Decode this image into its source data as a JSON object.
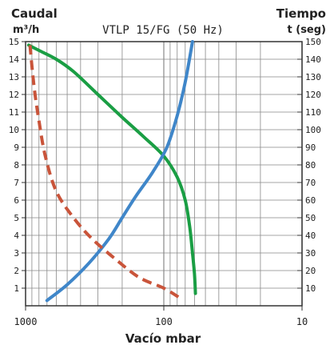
{
  "chart_data": {
    "type": "line",
    "title": "VTLP 15/FG (50 Hz)",
    "left_axis_title_top": "Caudal",
    "left_axis_title_unit": "m³/h",
    "right_axis_title_top": "Tiempo",
    "right_axis_title_unit": "t (seg)",
    "xlabel": "Vacío mbar",
    "x_scale": "log",
    "x_reversed": true,
    "xlim": [
      1000,
      10
    ],
    "x_tick_labels": [
      "1000",
      "100",
      "10"
    ],
    "x_tick_values": [
      1000,
      100,
      10
    ],
    "ylim_left": [
      0,
      15
    ],
    "y_left_ticks": [
      "1",
      "2",
      "3",
      "4",
      "5",
      "6",
      "7",
      "8",
      "9",
      "10",
      "11",
      "12",
      "13",
      "14",
      "15"
    ],
    "ylim_right": [
      0,
      150
    ],
    "y_right_ticks": [
      "10",
      "20",
      "30",
      "40",
      "50",
      "60",
      "70",
      "80",
      "90",
      "100",
      "110",
      "120",
      "130",
      "140",
      "150"
    ],
    "grid": true,
    "colors": {
      "green": "#1a9e44",
      "blue": "#3f86c9",
      "red": "#c9543a",
      "grid": "#888888",
      "frame": "#333333"
    },
    "series": [
      {
        "color": "green",
        "axis": "left",
        "style": "solid",
        "points": [
          [
            950,
            14.8
          ],
          [
            800,
            14.5
          ],
          [
            600,
            14.0
          ],
          [
            450,
            13.3
          ],
          [
            300,
            12.0
          ],
          [
            200,
            10.7
          ],
          [
            140,
            9.6
          ],
          [
            100,
            8.5
          ],
          [
            80,
            7.3
          ],
          [
            70,
            6.0
          ],
          [
            65,
            4.5
          ],
          [
            62,
            3.0
          ],
          [
            60,
            1.8
          ],
          [
            59,
            0.7
          ]
        ]
      },
      {
        "color": "blue",
        "axis": "left",
        "scale_note": "right",
        "style": "solid",
        "points": [
          [
            700,
            0.3
          ],
          [
            500,
            1.2
          ],
          [
            350,
            2.4
          ],
          [
            250,
            3.8
          ],
          [
            200,
            5.0
          ],
          [
            160,
            6.2
          ],
          [
            120,
            7.6
          ],
          [
            95,
            9.0
          ],
          [
            80,
            10.8
          ],
          [
            70,
            12.7
          ],
          [
            62,
            15.0
          ]
        ]
      },
      {
        "color": "red",
        "axis": "left",
        "style": "dashed",
        "points": [
          [
            930,
            14.8
          ],
          [
            870,
            12.5
          ],
          [
            800,
            10.5
          ],
          [
            720,
            8.5
          ],
          [
            600,
            6.5
          ],
          [
            450,
            5.0
          ],
          [
            330,
            3.8
          ],
          [
            220,
            2.6
          ],
          [
            150,
            1.6
          ],
          [
            100,
            1.0
          ],
          [
            75,
            0.4
          ]
        ]
      }
    ]
  }
}
